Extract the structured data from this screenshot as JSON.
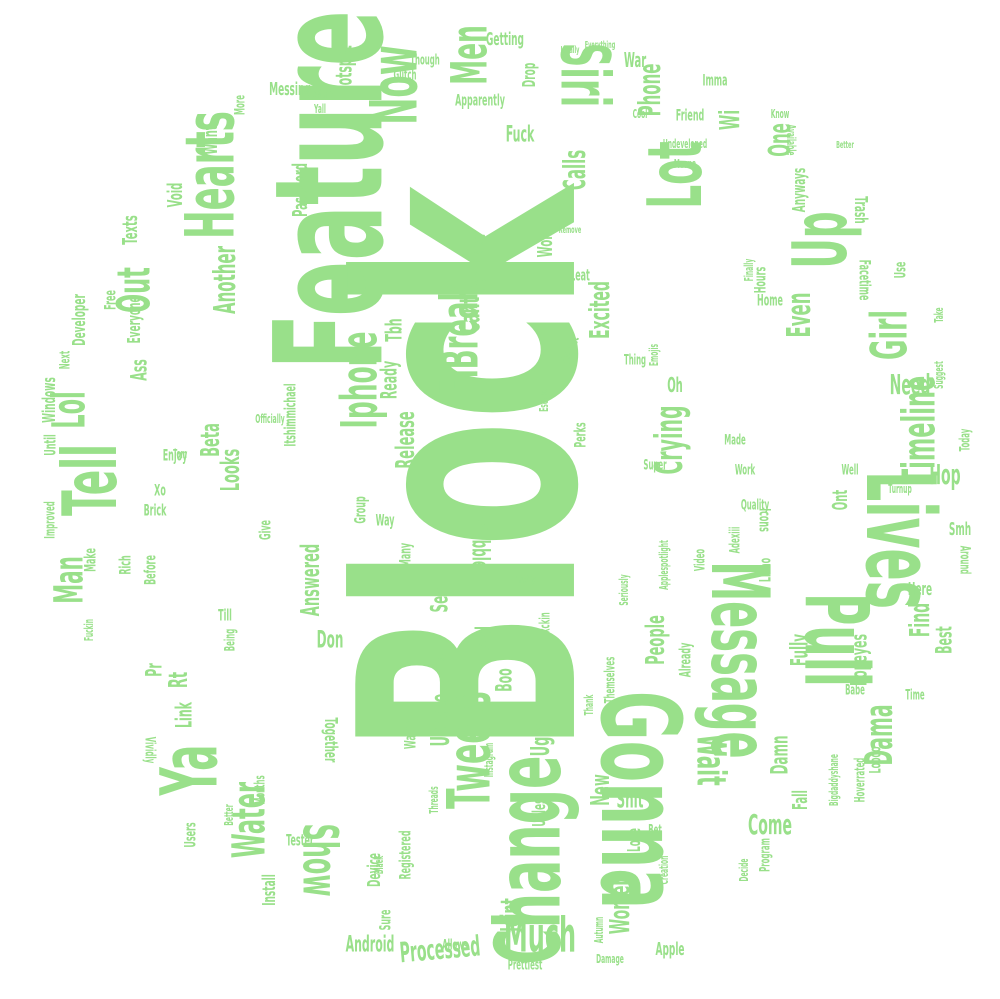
{
  "color": "#99e08a",
  "words": [
    "Block",
    "Feature",
    "Gonna",
    "Change",
    "Lives",
    "Pull",
    "Message",
    "Lot",
    "Siri",
    "Up",
    "Hearts",
    "Now",
    "Tell",
    "Ya",
    "Lol",
    "Tweets",
    "Men",
    "Iphone",
    "FiBreak",
    "Girl",
    "Timeline",
    "Show",
    "Much",
    "Water",
    "Out",
    "Wait",
    "Dama",
    "Crying",
    "Man",
    "Even",
    "Another",
    "Calls",
    "Phone",
    "One",
    "Cant",
    "Excited",
    "Processed",
    "Women",
    "Come",
    "Need",
    "Hop",
    "Find",
    "Looks",
    "Answered",
    "Release",
    "Beta",
    "New",
    "Ugly",
    "Joint",
    "Android",
    "Update",
    "People",
    "Shit",
    "Don",
    "See",
    "Dribbble",
    "Fully",
    "Damn",
    "Best",
    "Popeyes",
    "Lord",
    "Boo",
    "Wi",
    "Link",
    "Rt",
    "Pr",
    "Tbh",
    "Ready",
    "Ass",
    "Everyone",
    "Texts",
    "Void",
    "Want",
    "Hotspot",
    "Messing",
    "Password",
    "Fuck",
    "Won",
    "Add",
    "Nice",
    "Getting",
    "War",
    "Drop",
    "Imma",
    "Friend",
    "Apparently",
    "Anyways",
    "Trash",
    "Facetime",
    "Hours",
    "Home",
    "Use",
    "Made",
    "Work",
    "Quality",
    "Icons",
    "Ont",
    "Smh",
    "Around",
    "Here",
    "Babe",
    "Time",
    "Loooo",
    "Fall",
    "Love",
    "Bet",
    "Unless",
    "Device",
    "Install",
    "Tester",
    "Users",
    "Months",
    "Better",
    "Enjoy",
    "Till",
    "Being",
    "Give",
    "Group",
    "Many",
    "Way",
    "Today",
    "Well",
    "Super",
    "Oh",
    "Perks",
    "Thing",
    "Perfect",
    "Escape",
    "Make",
    "Rich",
    "Before",
    "Brick",
    "Xo",
    "Until",
    "Windows",
    "Next",
    "Developer",
    "Free",
    "Fuckin",
    "Vividly",
    "Together",
    "Watch",
    "Allows",
    "Sure",
    "Prettiest",
    "Apple",
    "Creation",
    "Decide",
    "Program",
    "Autumn",
    "Damage",
    "Registered",
    "Black",
    "Threads",
    "Instagram",
    "Thank",
    "Themselves",
    "Video",
    "Adexiii",
    "Lmao",
    "Already",
    "Top",
    "Fxckin",
    "Pretty",
    "Seriously",
    "Applespotlight",
    "Bigdaddyshane",
    "Hoverrated",
    "Ideally",
    "Everything",
    "Glitch",
    "Though",
    "Yall",
    "Restore",
    "More",
    "Cool",
    "Undeveloped",
    "Maana",
    "Know",
    "Available",
    "Better",
    "Remove",
    "Finally",
    "Suggest",
    "Take",
    "Turnup",
    "Itshimmichael",
    "Officially",
    "Tom",
    "Improved",
    "Leat",
    "Emojis"
  ]
}
